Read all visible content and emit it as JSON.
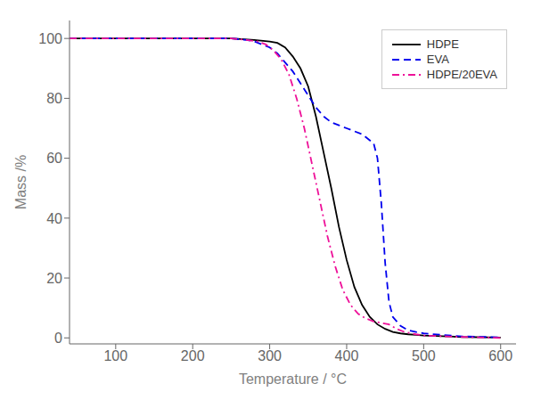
{
  "chart_data": {
    "type": "line",
    "xlabel": "Temperature / °C",
    "ylabel": "Mass /%",
    "xlim": [
      40,
      620
    ],
    "ylim": [
      -2,
      106
    ],
    "xticks": [
      100,
      200,
      300,
      400,
      500,
      600
    ],
    "yticks": [
      0,
      20,
      40,
      60,
      80,
      100
    ],
    "grid": false,
    "legend": "upper right",
    "series": [
      {
        "name": "HDPE",
        "color": "#000000",
        "line_style": "solid",
        "x": [
          40,
          150,
          250,
          280,
          300,
          310,
          320,
          330,
          340,
          350,
          360,
          370,
          380,
          390,
          400,
          410,
          420,
          430,
          440,
          450,
          460,
          470,
          480,
          490,
          500,
          550,
          600
        ],
        "values": [
          100,
          100,
          100,
          99.5,
          99,
          98.5,
          97,
          94,
          90,
          84,
          74,
          62,
          50,
          37,
          26,
          17,
          11,
          7,
          4.5,
          3,
          2,
          1.5,
          1.2,
          1.0,
          0.8,
          0.3,
          0.1
        ]
      },
      {
        "name": "EVA",
        "color": "#0000ee",
        "line_style": "dashed",
        "x": [
          40,
          150,
          250,
          270,
          280,
          290,
          300,
          310,
          320,
          330,
          340,
          350,
          360,
          370,
          380,
          390,
          400,
          410,
          420,
          425,
          430,
          435,
          440,
          445,
          450,
          455,
          460,
          470,
          480,
          500,
          550,
          600
        ],
        "values": [
          100,
          100,
          100,
          99.5,
          99,
          98,
          97,
          95,
          92,
          89,
          85,
          81,
          77,
          74,
          72,
          71,
          70,
          69,
          68,
          67,
          66,
          65,
          60,
          45,
          25,
          12,
          7,
          4,
          2.5,
          1.5,
          0.5,
          0.2
        ]
      },
      {
        "name": "HDPE/20EVA",
        "color": "#ee1199",
        "line_style": "dashdot",
        "x": [
          40,
          150,
          250,
          270,
          285,
          295,
          305,
          315,
          325,
          335,
          345,
          355,
          365,
          375,
          385,
          395,
          405,
          415,
          425,
          435,
          445,
          455,
          465,
          475,
          490,
          500,
          550,
          600
        ],
        "values": [
          100,
          100,
          100,
          99.5,
          99,
          98,
          96,
          93,
          88,
          80,
          70,
          58,
          46,
          34,
          24,
          16,
          11,
          8,
          6.5,
          5.5,
          5,
          4.5,
          3,
          2,
          1.2,
          0.8,
          0.3,
          0.0
        ]
      }
    ]
  }
}
